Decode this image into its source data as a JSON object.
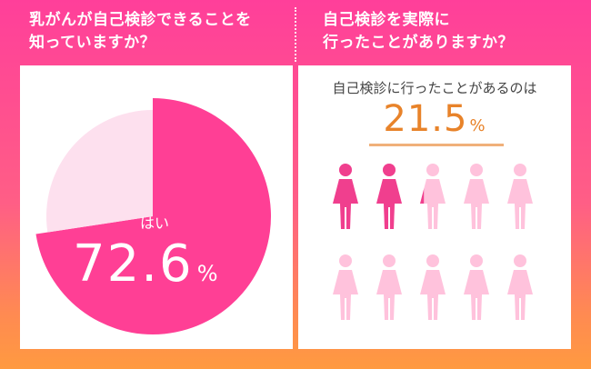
{
  "left_heading": "乳がんが自己検診できることを\n知っていますか？",
  "right_heading": "自己検診を実際に\n行ったことがありますか？",
  "chart_data": [
    {
      "type": "pie",
      "slices": [
        {
          "label": "はい",
          "value": 72.6,
          "color": "#ff3f95"
        },
        {
          "label": "",
          "value": 27.4,
          "color": "#fde0ee"
        }
      ],
      "highlight": {
        "label": "はい",
        "value": "72.6",
        "unit": "%"
      }
    },
    {
      "type": "pictograph",
      "caption": "自己検診に行ったことがあるのは",
      "value": 21.5,
      "value_text": "21.5",
      "unit": "%",
      "icon_count": 10,
      "columns": 5,
      "filled_color": "#f03f8e",
      "empty_color": "#ffc2dc"
    }
  ],
  "icons": {
    "figure": "woman-icon"
  }
}
